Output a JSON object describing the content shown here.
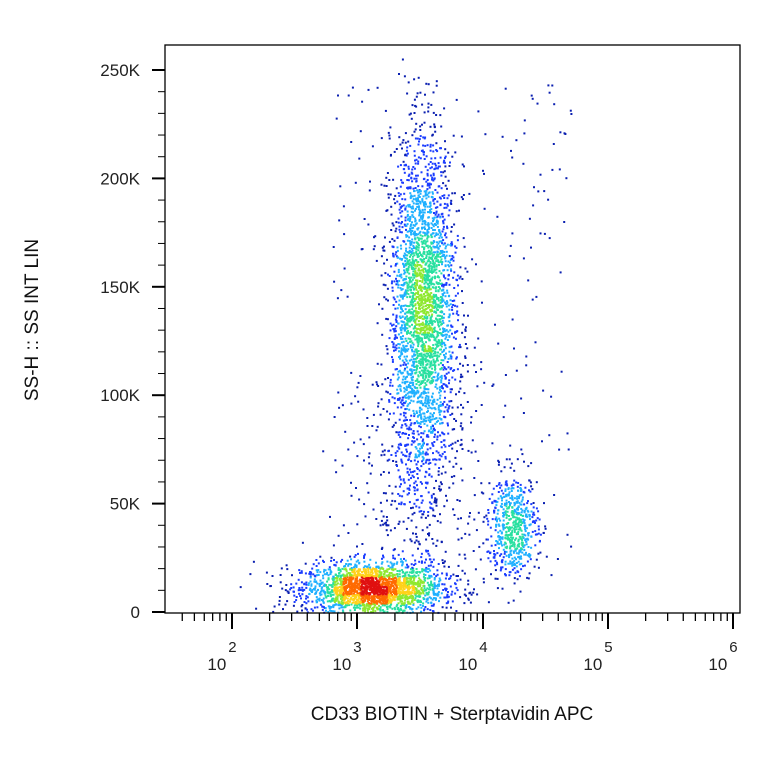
{
  "chart_data": {
    "type": "scatter",
    "style": "flow-cytometry density dot plot",
    "xlabel": "CD33 BIOTIN + Sterptavidin APC",
    "ylabel": "SS-H :: SS INT LIN",
    "x_scale": "log",
    "xlim": [
      500,
      1000000
    ],
    "ylim": [
      -5000,
      262144
    ],
    "x_ticks": [
      {
        "base": "10",
        "exp": "2",
        "value": 100
      },
      {
        "base": "10",
        "exp": "3",
        "value": 1000
      },
      {
        "base": "10",
        "exp": "4",
        "value": 10000
      },
      {
        "base": "10",
        "exp": "5",
        "value": 100000
      },
      {
        "base": "10",
        "exp": "6",
        "value": 1000000
      }
    ],
    "y_ticks": [
      {
        "label": "0",
        "value": 0
      },
      {
        "label": "50K",
        "value": 50000
      },
      {
        "label": "100K",
        "value": 100000
      },
      {
        "label": "150K",
        "value": 150000
      },
      {
        "label": "200K",
        "value": 200000
      },
      {
        "label": "250K",
        "value": 250000
      }
    ],
    "populations": [
      {
        "center_x": 1300,
        "center_y": 11000,
        "spread_log_x": 0.28,
        "spread_y": 6000,
        "count": 2200
      },
      {
        "center_x": 3300,
        "center_y": 140000,
        "spread_log_x": 0.13,
        "spread_y": 38000,
        "count": 2800
      },
      {
        "center_x": 17000,
        "center_y": 40000,
        "spread_log_x": 0.1,
        "spread_y": 12000,
        "count": 600
      },
      {
        "center_x": 3000,
        "center_y": 60000,
        "spread_log_x": 0.25,
        "spread_y": 40000,
        "count": 400
      }
    ],
    "density_colors": [
      "#0a1fb0",
      "#1a3cff",
      "#1fb0ff",
      "#28e0a0",
      "#8fe830",
      "#ffd21a",
      "#ff6a00",
      "#e01010"
    ],
    "grid": false,
    "legend": "none"
  }
}
